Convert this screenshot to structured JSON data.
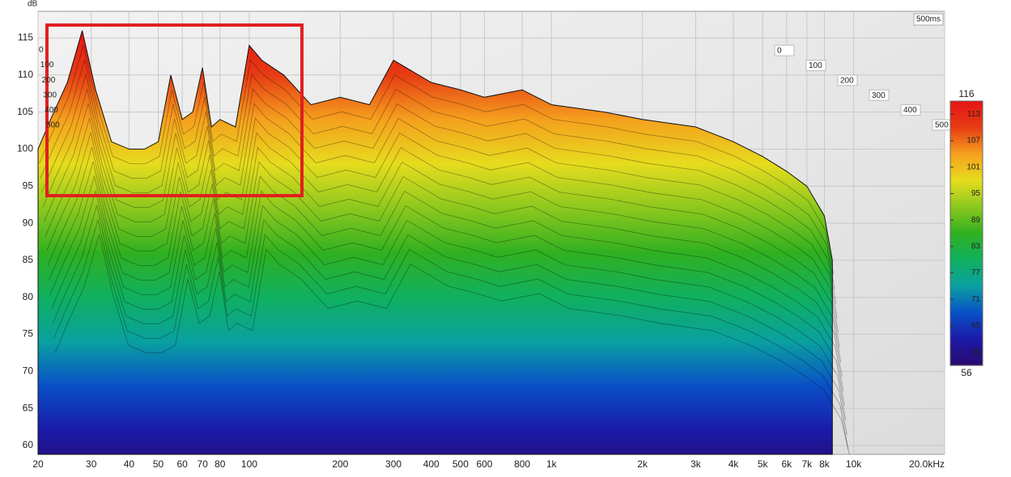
{
  "chart_data": {
    "type": "waterfall",
    "y_label": "dB",
    "x": [
      20,
      22,
      25,
      28,
      31,
      35,
      40,
      45,
      50,
      55,
      60,
      65,
      70,
      75,
      80,
      90,
      100,
      110,
      130,
      160,
      200,
      250,
      300,
      400,
      500,
      600,
      800,
      1000,
      1500,
      2000,
      3000,
      4000,
      5000,
      6000,
      7000,
      8000,
      8500
    ],
    "series": [
      {
        "values": [
          100,
          104,
          109,
          116,
          108,
          101,
          100,
          100,
          101,
          110,
          104,
          105,
          111,
          103,
          104,
          103,
          114,
          112,
          110,
          106,
          107,
          106,
          112,
          109,
          108,
          107,
          108,
          106,
          105,
          104,
          103,
          101,
          99,
          97,
          95,
          91,
          85
        ]
      }
    ],
    "xlim": [
      20,
      20000
    ],
    "xticks": [
      20,
      30,
      40,
      50,
      60,
      70,
      80,
      100,
      200,
      300,
      400,
      500,
      600,
      800,
      {
        "value": 1000,
        "label": "1k"
      },
      {
        "value": 2000,
        "label": "2k"
      },
      {
        "value": 3000,
        "label": "3k"
      },
      {
        "value": 4000,
        "label": "4k"
      },
      {
        "value": 5000,
        "label": "5k"
      },
      {
        "value": 6000,
        "label": "6k"
      },
      {
        "value": 7000,
        "label": "7k"
      },
      {
        "value": 8000,
        "label": "8k"
      },
      {
        "value": 10000,
        "label": "10k"
      },
      {
        "value": 20000,
        "label": "20.0kHz"
      }
    ],
    "log_x": true,
    "ylim": [
      58.8,
      118.6
    ],
    "yticks": [
      60,
      65,
      70,
      75,
      80,
      85,
      90,
      95,
      100,
      105,
      110,
      115
    ],
    "grid": true,
    "time_axis_label": "500ms",
    "tlim": [
      0,
      500
    ],
    "tticks": [
      0,
      100,
      200,
      300,
      400,
      500
    ],
    "colorbar_lim": [
      56,
      116
    ],
    "colorbar_ticks": [
      59,
      65,
      71,
      77,
      83,
      89,
      95,
      101,
      107,
      113
    ],
    "colormap": [
      "#2a0a6e",
      "#1a1aa8",
      "#0a50c8",
      "#0aa0a0",
      "#10b060",
      "#30b020",
      "#8cc81e",
      "#e6dc1e",
      "#f5a01e",
      "#e63c14",
      "#e61414"
    ]
  }
}
